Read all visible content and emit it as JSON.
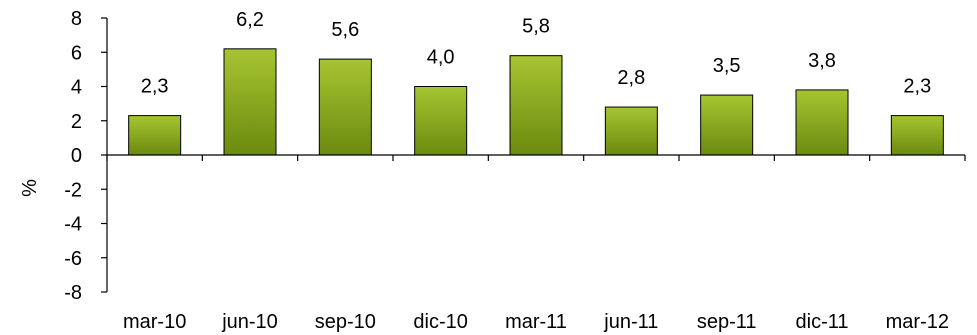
{
  "chart_data": {
    "type": "bar",
    "categories": [
      "mar-10",
      "jun-10",
      "sep-10",
      "dic-10",
      "mar-11",
      "jun-11",
      "sep-11",
      "dic-11",
      "mar-12"
    ],
    "values": [
      2.3,
      6.2,
      5.6,
      4.0,
      5.8,
      2.8,
      3.5,
      3.8,
      2.3
    ],
    "value_labels": [
      "2,3",
      "6,2",
      "5,6",
      "4,0",
      "5,8",
      "2,8",
      "3,5",
      "3,8",
      "2,3"
    ],
    "ylabel": "%",
    "ylim": [
      -8,
      8
    ],
    "yticks": [
      8,
      6,
      4,
      2,
      0,
      -2,
      -4,
      -6,
      -8
    ],
    "ytick_labels": [
      "8",
      "6",
      "4",
      "2",
      "0",
      "-2",
      "-4",
      "-6",
      "-8"
    ],
    "grid": false,
    "legend": "none",
    "colors": {
      "bar_top": "#a6c531",
      "bar_bottom": "#6c8a0f",
      "bar_stroke": "#000000",
      "axis": "#000000"
    }
  }
}
